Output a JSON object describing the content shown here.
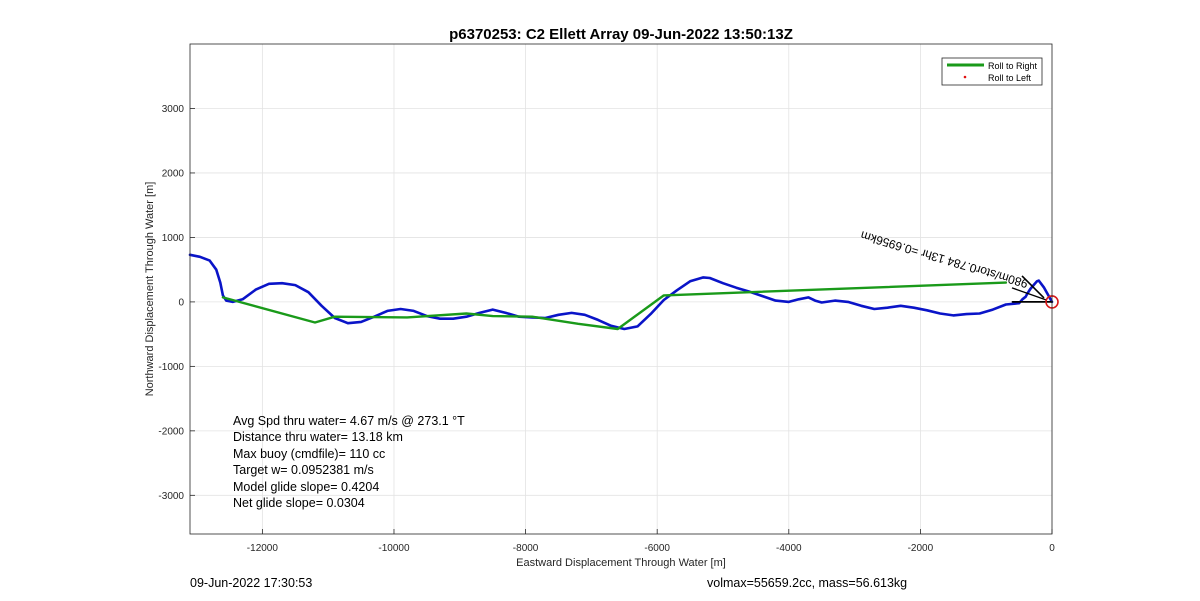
{
  "chart_data": {
    "type": "line",
    "title": "p6370253: C2 Ellett Array 09-Jun-2022 13:50:13Z",
    "xlabel": "Eastward Displacement Through Water [m]",
    "ylabel": "Northward Displacement Through Water [m]",
    "xlim": [
      -13100,
      0
    ],
    "ylim": [
      -3600,
      4000
    ],
    "xticks": [
      -12000,
      -10000,
      -8000,
      -6000,
      -4000,
      -2000,
      0
    ],
    "yticks": [
      -3000,
      -2000,
      -1000,
      0,
      1000,
      2000,
      3000
    ],
    "grid": true,
    "legend_position": "top-right",
    "legend": [
      {
        "label": "Roll to Right",
        "color": "#1a9a1a",
        "marker": "line"
      },
      {
        "label": "Roll to Left",
        "color": "#e01010",
        "marker": "dot"
      }
    ],
    "series": [
      {
        "color": "#0a14c8",
        "x": [
          0,
          -120,
          -200,
          -230,
          -280,
          -330,
          -380,
          -400,
          -450,
          -500,
          -700,
          -900,
          -1100,
          -1300,
          -1500,
          -1700,
          -1900,
          -2100,
          -2300,
          -2500,
          -2700,
          -2900,
          -3100,
          -3300,
          -3500,
          -3600,
          -3700,
          -3850,
          -4000,
          -4200,
          -4400,
          -4600,
          -4800,
          -5000,
          -5200,
          -5300,
          -5500,
          -5700,
          -5900,
          -6100,
          -6300,
          -6500,
          -6700,
          -6900,
          -7100,
          -7300,
          -7500,
          -7700,
          -7900,
          -8100,
          -8300,
          -8500,
          -8700,
          -8900,
          -9100,
          -9300,
          -9500,
          -9700,
          -9900,
          -10100,
          -10300,
          -10500,
          -10700,
          -10900,
          -11100,
          -11300,
          -11500,
          -11700,
          -11900,
          -12100,
          -12300,
          -12450,
          -12550,
          -12600,
          -12640,
          -12700,
          -12800,
          -12950,
          -13100
        ],
        "y": [
          0,
          220,
          330,
          320,
          260,
          200,
          120,
          80,
          40,
          -20,
          -40,
          -120,
          -180,
          -190,
          -210,
          -180,
          -130,
          -90,
          -60,
          -90,
          -110,
          -60,
          0,
          20,
          -10,
          20,
          70,
          40,
          0,
          20,
          90,
          160,
          220,
          290,
          370,
          380,
          320,
          180,
          30,
          -190,
          -380,
          -420,
          -370,
          -280,
          -200,
          -170,
          -200,
          -250,
          -240,
          -230,
          -170,
          -120,
          -170,
          -230,
          -260,
          -260,
          -220,
          -140,
          -110,
          -140,
          -230,
          -310,
          -330,
          -250,
          -60,
          150,
          260,
          290,
          280,
          190,
          40,
          0,
          20,
          100,
          300,
          500,
          640,
          700,
          730
        ]
      },
      {
        "color": "#1a9a1a",
        "x": [
          -12600,
          -11200,
          -10900,
          -9800,
          -8900,
          -8500,
          -7900,
          -7200,
          -6600,
          -5900,
          -700
        ],
        "y": [
          70,
          -320,
          -230,
          -240,
          -180,
          -220,
          -230,
          -340,
          -420,
          100,
          300
        ]
      },
      {
        "color": "#000000",
        "x": [
          -600,
          -400,
          -300,
          -100,
          0
        ],
        "y": [
          0,
          0,
          0,
          0,
          0
        ]
      }
    ],
    "markers": [
      {
        "type": "circle",
        "x": 0,
        "y": 0,
        "color": "#d91818"
      }
    ],
    "annotations": [
      {
        "text": "980m/stor0.784 13hr =0.6956km",
        "x": -3200,
        "y": 1100,
        "rotated": true
      }
    ],
    "stats": [
      "Avg Spd thru water=  4.67 m/s @ 273.1 °T",
      "Distance thru water= 13.18 km",
      "Max buoy (cmdfile)= 110 cc",
      "Target w= 0.0952381 m/s",
      "Model glide slope= 0.4204",
      "Net glide slope= 0.0304"
    ]
  },
  "footer": {
    "left": "09-Jun-2022 17:30:53",
    "right": "volmax=55659.2cc, mass=56.613kg"
  }
}
